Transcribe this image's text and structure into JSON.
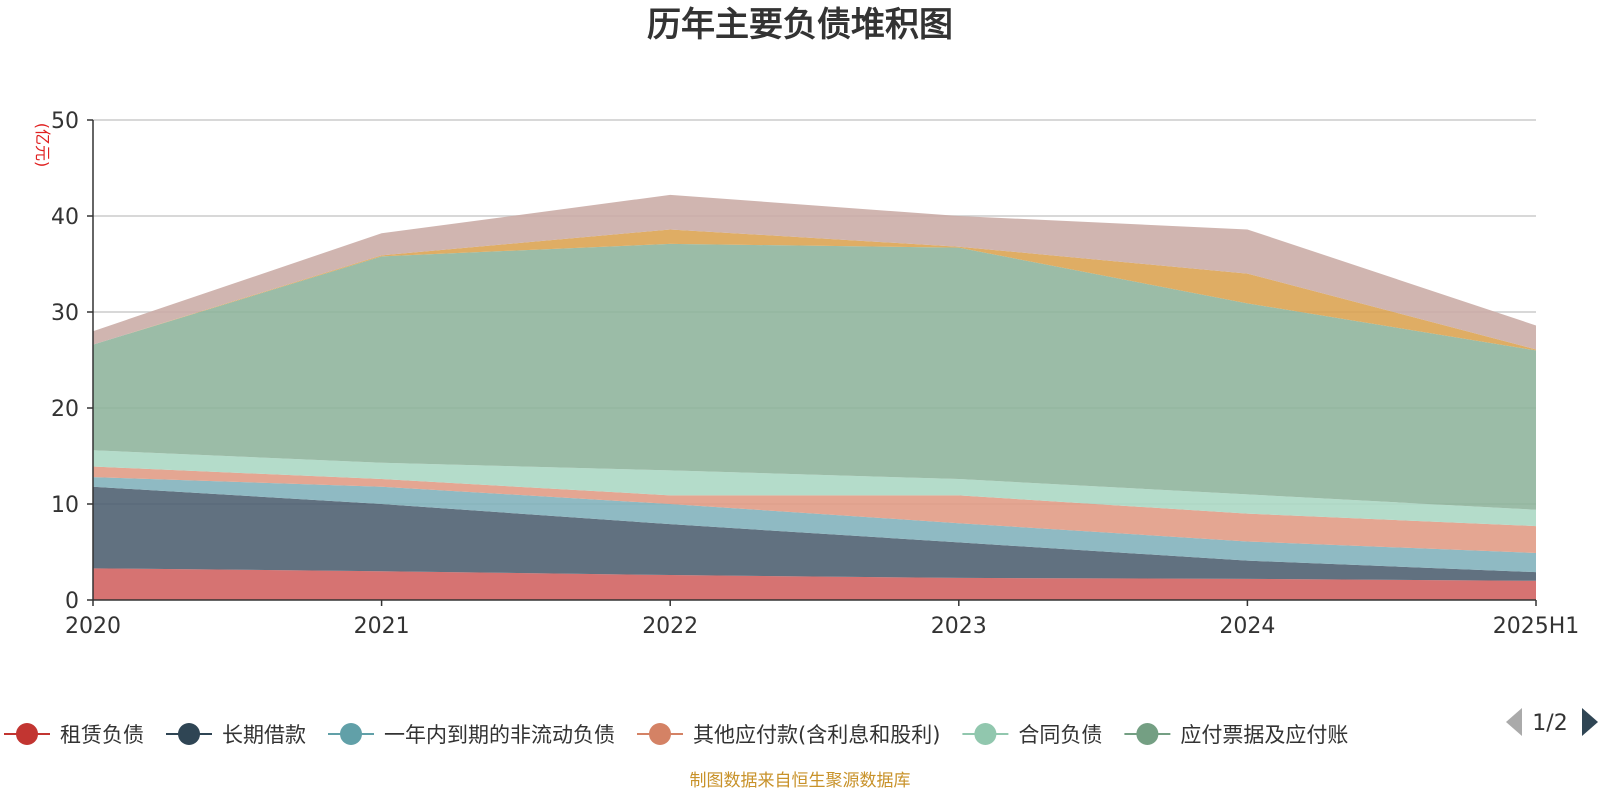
{
  "chart_data": {
    "type": "area",
    "stacked": true,
    "title": "历年主要负债堆积图",
    "unit_label": "(亿元)",
    "categories": [
      "2020",
      "2021",
      "2022",
      "2023",
      "2024",
      "2025H1"
    ],
    "ylim": [
      0,
      50
    ],
    "yticks": [
      "0",
      "10",
      "20",
      "30",
      "40",
      "50"
    ],
    "grid": true,
    "series": [
      {
        "name": "租赁负债",
        "color": "#d0605e",
        "values": [
          3.3,
          3.0,
          2.6,
          2.3,
          2.2,
          2.0
        ]
      },
      {
        "name": "长期借款",
        "color": "#4b5d6e",
        "values": [
          8.5,
          7.0,
          5.3,
          3.7,
          1.9,
          0.9
        ]
      },
      {
        "name": "一年内到期的非流动负债",
        "color": "#7fb0bb",
        "values": [
          1.0,
          1.8,
          2.1,
          2.0,
          2.0,
          2.0
        ]
      },
      {
        "name": "其他应付款(含利息和股利)",
        "color": "#e09a83",
        "values": [
          1.1,
          0.8,
          0.9,
          2.9,
          2.9,
          2.8
        ]
      },
      {
        "name": "合同负债",
        "color": "#aad7c3",
        "values": [
          1.7,
          1.7,
          2.6,
          1.7,
          2.0,
          1.7
        ]
      },
      {
        "name": "应付票据及应付账款",
        "color": "#8db39b",
        "values": [
          11.0,
          21.5,
          23.6,
          24.1,
          19.9,
          16.6
        ]
      },
      {
        "color": "#dba24e",
        "values": [
          0.0,
          0.1,
          1.5,
          0.1,
          3.1,
          0.1
        ]
      },
      {
        "color": "#c9aba5",
        "values": [
          1.4,
          2.3,
          3.6,
          3.2,
          4.6,
          2.5
        ]
      }
    ],
    "legend": {
      "placement": "bottom",
      "visible_count": 6,
      "page": "1/2",
      "last_label_visible": "应付票据及应付账"
    }
  },
  "footer": {
    "source": "制图数据来自恒生聚源数据库"
  }
}
